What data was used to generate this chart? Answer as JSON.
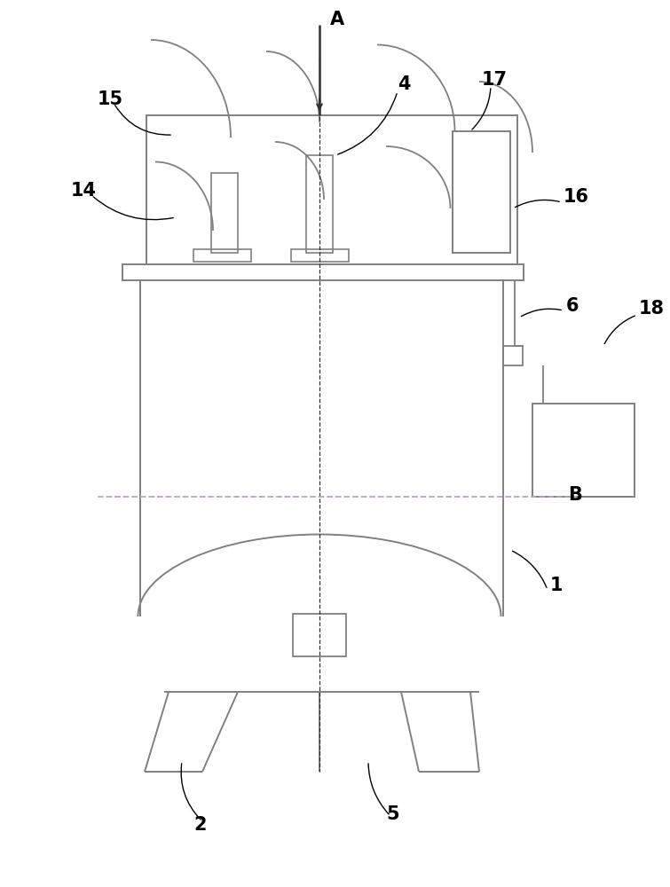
{
  "bg_color": "#ffffff",
  "line_color": "#808080",
  "dark_line": "#303030",
  "dashed_color": "#c0a0c0",
  "fig_width": 7.55,
  "fig_height": 10.0
}
